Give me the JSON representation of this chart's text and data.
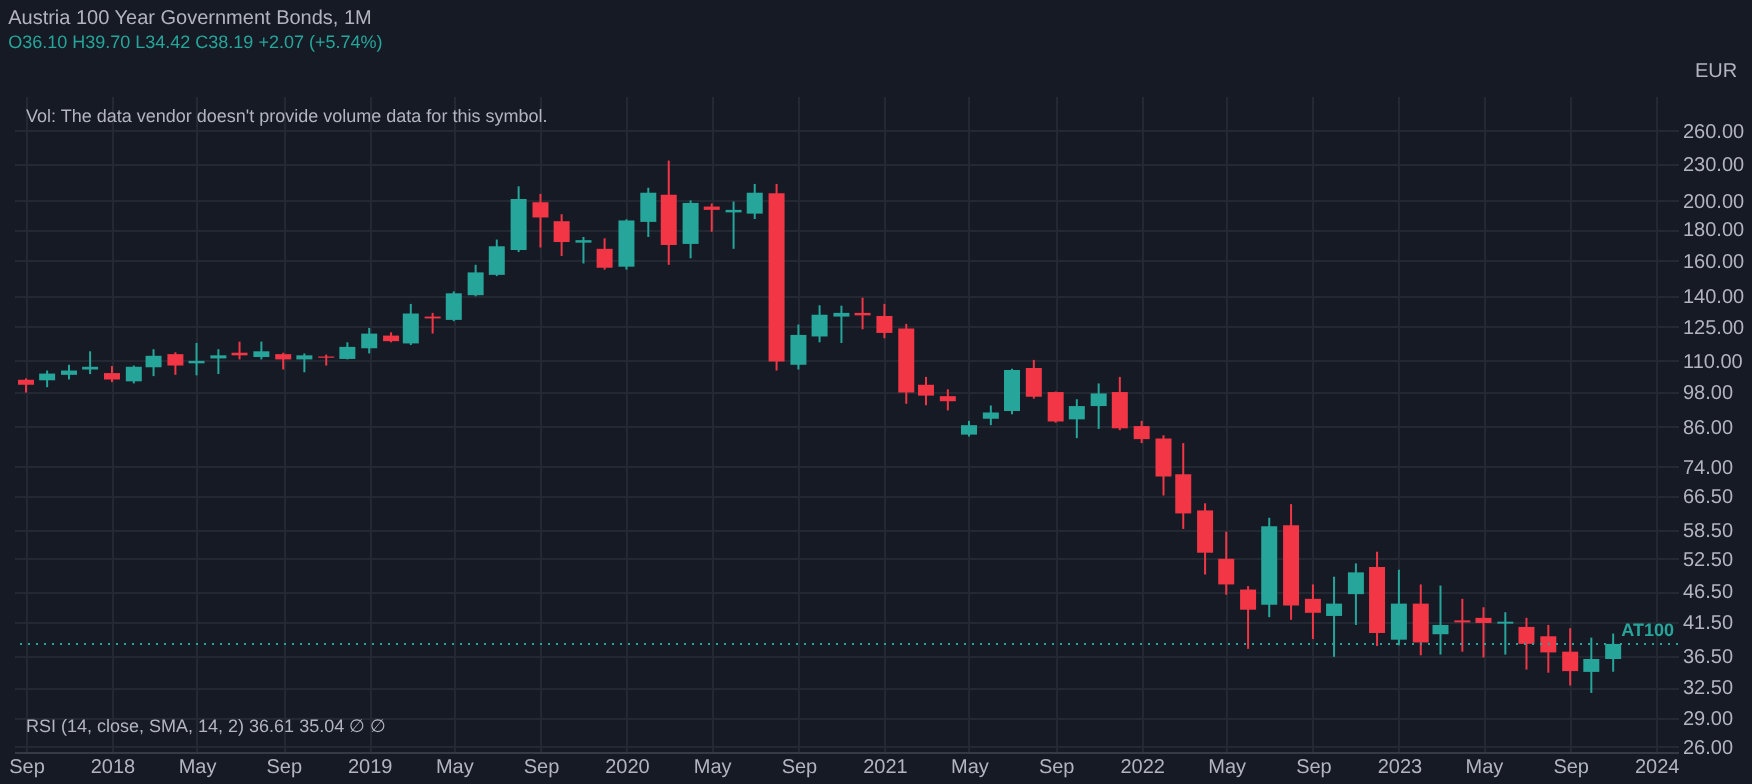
{
  "chart_data": {
    "type": "candlestick",
    "title": "Austria 100 Year Government Bonds, 1M",
    "subtitle": "O36.10 H39.70 L34.42 C38.19 +2.07 (+5.74%)",
    "ylabel": "EUR",
    "annotations": [
      "Vol: The data vendor doesn't provide volume data for this symbol.",
      "RSI (14, close, SMA, 14, 2) 36.61 35.04 ∅ ∅"
    ],
    "x": [
      "2017-09",
      "2017-10",
      "2017-11",
      "2017-12",
      "2018-01",
      "2018-02",
      "2018-03",
      "2018-04",
      "2018-05",
      "2018-06",
      "2018-07",
      "2018-08",
      "2018-09",
      "2018-10",
      "2018-11",
      "2018-12",
      "2019-01",
      "2019-02",
      "2019-03",
      "2019-04",
      "2019-05",
      "2019-06",
      "2019-07",
      "2019-08",
      "2019-09",
      "2019-10",
      "2019-11",
      "2019-12",
      "2020-01",
      "2020-02",
      "2020-03",
      "2020-04",
      "2020-05",
      "2020-06",
      "2020-07",
      "2020-08",
      "2020-09",
      "2020-10",
      "2020-11",
      "2020-12",
      "2021-01",
      "2021-02",
      "2021-03",
      "2021-04",
      "2021-05",
      "2021-06",
      "2021-07",
      "2021-08",
      "2021-09",
      "2021-10",
      "2021-11",
      "2021-12",
      "2022-01",
      "2022-02",
      "2022-03",
      "2022-04",
      "2022-05",
      "2022-06",
      "2022-07",
      "2022-08",
      "2022-09",
      "2022-10",
      "2022-11",
      "2022-12",
      "2023-01",
      "2023-02",
      "2023-03",
      "2023-04",
      "2023-05",
      "2023-06",
      "2023-07",
      "2023-08",
      "2023-09",
      "2023-10",
      "2023-11"
    ],
    "ohlc": [
      [
        102.5,
        103,
        97.7,
        100.6
      ],
      [
        102.3,
        106.1,
        99.7,
        104.9
      ],
      [
        104.4,
        108.4,
        102.6,
        106.1
      ],
      [
        106.5,
        114.0,
        104.7,
        107.6
      ],
      [
        105.1,
        107.9,
        101.6,
        102.6
      ],
      [
        101.9,
        108.1,
        101.1,
        107.6
      ],
      [
        107.4,
        114.9,
        103.9,
        112.1
      ],
      [
        112.8,
        113.6,
        104.4,
        108.1
      ],
      [
        109.0,
        117.6,
        104.2,
        110.0
      ],
      [
        111.0,
        114.9,
        104.7,
        112.3
      ],
      [
        113.4,
        118.2,
        110.6,
        112.3
      ],
      [
        111.6,
        118.2,
        110.6,
        114.0
      ],
      [
        112.8,
        113.4,
        106.5,
        110.6
      ],
      [
        110.6,
        113.1,
        105.4,
        112.3
      ],
      [
        111.8,
        112.6,
        108.1,
        111.3
      ],
      [
        110.8,
        117.9,
        110.6,
        115.9
      ],
      [
        115.3,
        124.4,
        113.1,
        121.8
      ],
      [
        120.9,
        122.4,
        117.9,
        118.4
      ],
      [
        117.4,
        136.1,
        116.7,
        131.3
      ],
      [
        129.8,
        131.6,
        121.8,
        128.9
      ],
      [
        128.2,
        142.6,
        127.6,
        141.6
      ],
      [
        140.6,
        157.5,
        140.0,
        153.1
      ],
      [
        151.7,
        173.1,
        151.0,
        168.8
      ],
      [
        166.4,
        211.2,
        165.2,
        201.4
      ],
      [
        199.0,
        205.3,
        168.0,
        188.0
      ],
      [
        185.4,
        190.3,
        162.8,
        171.5
      ],
      [
        171.1,
        174.8,
        158.3,
        172.7
      ],
      [
        167.2,
        173.9,
        154.7,
        155.8
      ],
      [
        156.4,
        186.7,
        154.7,
        185.9
      ],
      [
        184.9,
        210.1,
        174.8,
        206.2
      ],
      [
        204.7,
        232.5,
        157.5,
        169.6
      ],
      [
        170.3,
        200.4,
        161.4,
        198.5
      ],
      [
        195.8,
        198.1,
        178.2,
        193.4
      ],
      [
        191.6,
        199.5,
        167.2,
        193.4
      ],
      [
        190.7,
        213.1,
        186.9,
        206.2
      ],
      [
        205.8,
        213.1,
        106.1,
        109.7
      ],
      [
        108.4,
        126.0,
        106.5,
        121.2
      ],
      [
        120.5,
        135.4,
        117.9,
        130.7
      ],
      [
        129.8,
        135.2,
        117.6,
        131.6
      ],
      [
        131.6,
        139.3,
        123.8,
        130.4
      ],
      [
        130.1,
        136.1,
        119.7,
        122.1
      ],
      [
        124.1,
        126.3,
        93.7,
        97.7
      ],
      [
        100.6,
        103.6,
        93.2,
        96.6
      ],
      [
        96.4,
        98.9,
        91.4,
        94.6
      ],
      [
        83.5,
        87.9,
        82.9,
        86.5
      ],
      [
        88.6,
        93.1,
        86.5,
        90.7
      ],
      [
        91.2,
        106.8,
        90.1,
        106.3
      ],
      [
        107.1,
        110.4,
        95.5,
        96.2
      ],
      [
        97.9,
        98.1,
        87.3,
        87.7
      ],
      [
        88.4,
        95.3,
        82.4,
        92.9
      ],
      [
        92.9,
        101.1,
        85.3,
        97.4
      ],
      [
        97.9,
        103.6,
        84.9,
        85.5
      ],
      [
        86.2,
        87.9,
        80.9,
        82.1
      ],
      [
        82.3,
        83.3,
        66.5,
        71.4
      ],
      [
        72.0,
        80.9,
        58.7,
        62.2
      ],
      [
        62.9,
        64.6,
        49.5,
        53.7
      ],
      [
        52.5,
        58.1,
        45.9,
        47.7
      ],
      [
        46.8,
        47.4,
        37.5,
        43.4
      ],
      [
        44.2,
        61.2,
        42.2,
        59.3
      ],
      [
        59.5,
        64.4,
        41.8,
        44.1
      ],
      [
        45.2,
        47.7,
        38.9,
        42.9
      ],
      [
        42.4,
        49.1,
        36.4,
        44.4
      ],
      [
        46.0,
        51.6,
        41.0,
        49.9
      ],
      [
        50.9,
        53.9,
        37.9,
        39.8
      ],
      [
        38.8,
        50.4,
        38.0,
        44.4
      ],
      [
        44.4,
        47.7,
        36.6,
        38.4
      ],
      [
        39.6,
        47.5,
        36.7,
        41.0
      ],
      [
        41.7,
        45.2,
        37.1,
        41.4
      ],
      [
        42.1,
        43.8,
        36.3,
        41.3
      ],
      [
        41.2,
        43.0,
        36.7,
        41.5
      ],
      [
        40.7,
        42.1,
        34.7,
        38.2
      ],
      [
        39.3,
        41.0,
        34.3,
        37.0
      ],
      [
        37.1,
        40.5,
        32.7,
        34.5
      ],
      [
        34.4,
        39.1,
        31.8,
        36.1
      ],
      [
        36.1,
        39.7,
        34.42,
        38.19
      ]
    ],
    "colors": [
      "#f23645",
      "#26a69a",
      "#26a69a",
      "#26a69a",
      "#f23645",
      "#26a69a",
      "#26a69a",
      "#f23645",
      "#26a69a",
      "#26a69a",
      "#f23645",
      "#26a69a",
      "#f23645",
      "#26a69a",
      "#f23645",
      "#26a69a",
      "#26a69a",
      "#f23645",
      "#26a69a",
      "#f23645",
      "#26a69a",
      "#26a69a",
      "#26a69a",
      "#26a69a",
      "#f23645",
      "#f23645",
      "#26a69a",
      "#f23645",
      "#26a69a",
      "#26a69a",
      "#f23645",
      "#26a69a",
      "#f23645",
      "#26a69a",
      "#26a69a",
      "#f23645",
      "#26a69a",
      "#26a69a",
      "#26a69a",
      "#f23645",
      "#f23645",
      "#f23645",
      "#f23645",
      "#f23645",
      "#26a69a",
      "#26a69a",
      "#26a69a",
      "#f23645",
      "#f23645",
      "#26a69a",
      "#26a69a",
      "#f23645",
      "#f23645",
      "#f23645",
      "#f23645",
      "#f23645",
      "#f23645",
      "#f23645",
      "#26a69a",
      "#f23645",
      "#f23645",
      "#26a69a",
      "#26a69a",
      "#f23645",
      "#26a69a",
      "#f23645",
      "#26a69a",
      "#f23645",
      "#f23645",
      "#26a69a",
      "#f23645",
      "#f23645",
      "#f23645",
      "#26a69a",
      "#26a69a"
    ],
    "log": true,
    "ylim": [
      25.5,
      296
    ],
    "yticks": [
      {
        "value": 26,
        "label": "26.00"
      },
      {
        "value": 29,
        "label": "29.00"
      },
      {
        "value": 32.5,
        "label": "32.50"
      },
      {
        "value": 36.5,
        "label": "36.50"
      },
      {
        "value": 41.5,
        "label": "41.50"
      },
      {
        "value": 46.5,
        "label": "46.50"
      },
      {
        "value": 52.5,
        "label": "52.50"
      },
      {
        "value": 58.5,
        "label": "58.50"
      },
      {
        "value": 66.5,
        "label": "66.50"
      },
      {
        "value": 74,
        "label": "74.00"
      },
      {
        "value": 86,
        "label": "86.00"
      },
      {
        "value": 98,
        "label": "98.00"
      },
      {
        "value": 110,
        "label": "110.00"
      },
      {
        "value": 125,
        "label": "125.00"
      },
      {
        "value": 140,
        "label": "140.00"
      },
      {
        "value": 160,
        "label": "160.00"
      },
      {
        "value": 180,
        "label": "180.00"
      },
      {
        "value": 200,
        "label": "200.00"
      },
      {
        "value": 230,
        "label": "230.00"
      },
      {
        "value": 260,
        "label": "260.00"
      }
    ],
    "xlim": [
      "2017-08-15",
      "2024-02-01"
    ],
    "xticks": [
      {
        "value": "2017-09",
        "label": "Sep"
      },
      {
        "value": "2018-01",
        "label": "2018"
      },
      {
        "value": "2018-05",
        "label": "May"
      },
      {
        "value": "2018-09",
        "label": "Sep"
      },
      {
        "value": "2019-01",
        "label": "2019"
      },
      {
        "value": "2019-05",
        "label": "May"
      },
      {
        "value": "2019-09",
        "label": "Sep"
      },
      {
        "value": "2020-01",
        "label": "2020"
      },
      {
        "value": "2020-05",
        "label": "May"
      },
      {
        "value": "2020-09",
        "label": "Sep"
      },
      {
        "value": "2021-01",
        "label": "2021"
      },
      {
        "value": "2021-05",
        "label": "May"
      },
      {
        "value": "2021-09",
        "label": "Sep"
      },
      {
        "value": "2022-01",
        "label": "2022"
      },
      {
        "value": "2022-05",
        "label": "May"
      },
      {
        "value": "2022-09",
        "label": "Sep"
      },
      {
        "value": "2023-01",
        "label": "2023"
      },
      {
        "value": "2023-05",
        "label": "May"
      },
      {
        "value": "2023-09",
        "label": "Sep"
      },
      {
        "value": "2024-01",
        "label": "2024"
      }
    ],
    "ref_lines": [
      {
        "axis": "y",
        "value": 38.19,
        "label": "AT100",
        "color": "#26a69a",
        "line_style": "dotted"
      }
    ],
    "grid": true
  }
}
